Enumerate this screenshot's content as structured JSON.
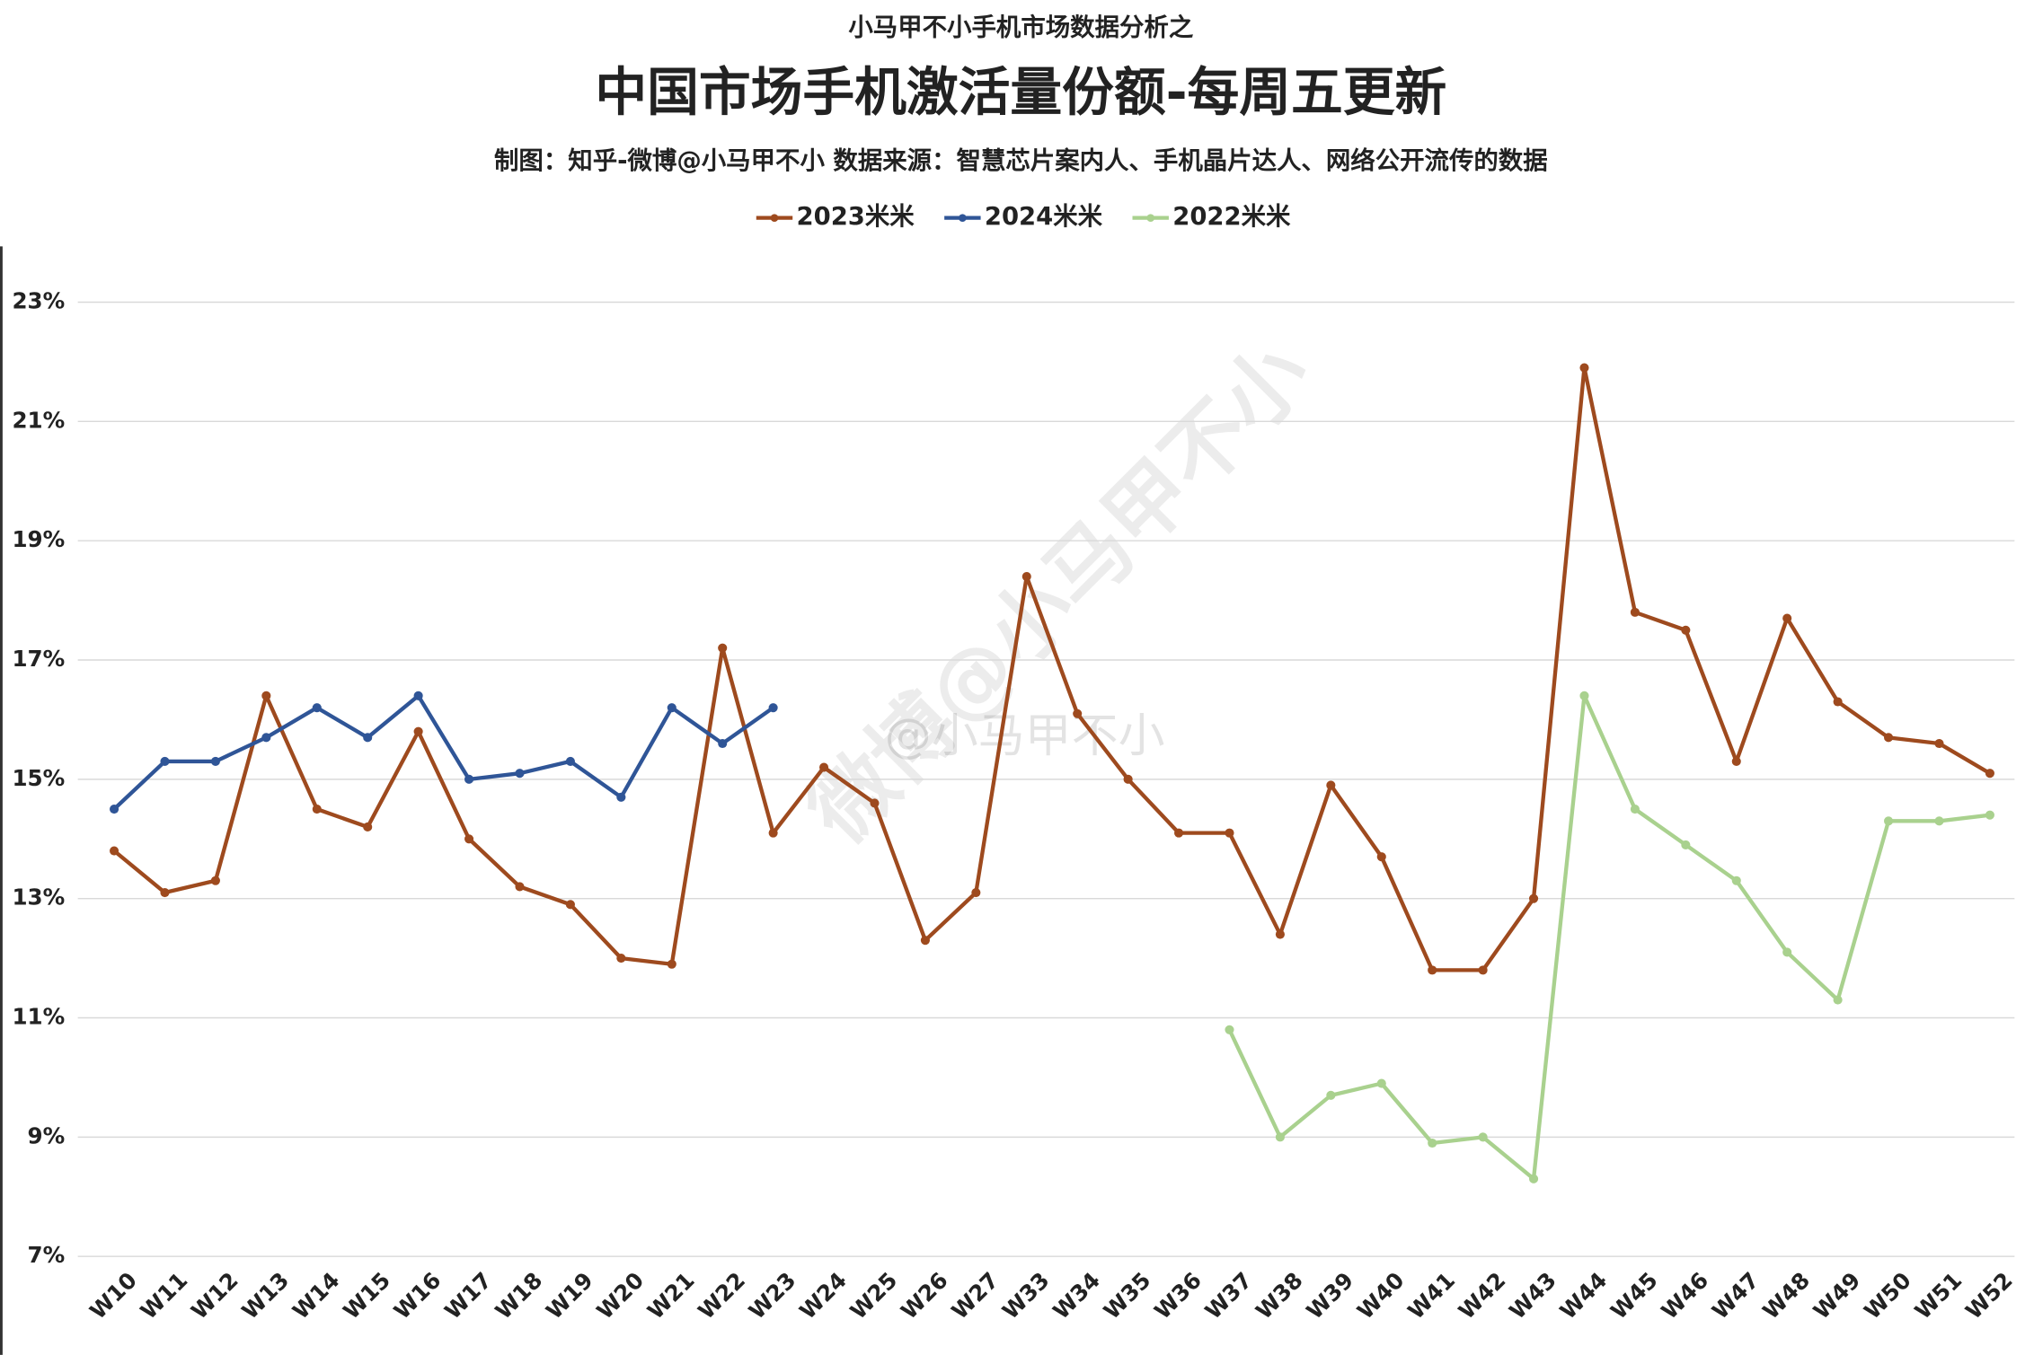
{
  "chart_data": {
    "type": "line",
    "supertitle": "小马甲不小手机市场数据分析之",
    "title": "中国市场手机激活量份额-每周五更新",
    "subtitle": "制图：知乎-微博@小马甲不小  数据来源：智慧芯片案内人、手机晶片达人、网络公开流传的数据",
    "watermark": [
      "微博@小马甲不小",
      "@小马甲不小"
    ],
    "categories": [
      "W10",
      "W11",
      "W12",
      "W13",
      "W14",
      "W15",
      "W16",
      "W17",
      "W18",
      "W19",
      "W20",
      "W21",
      "W22",
      "W23",
      "W24",
      "W25",
      "W26",
      "W27",
      "W33",
      "W34",
      "W35",
      "W36",
      "W37",
      "W38",
      "W39",
      "W40",
      "W41",
      "W42",
      "W43",
      "W44",
      "W45",
      "W46",
      "W47",
      "W48",
      "W49",
      "W50",
      "W51",
      "W52"
    ],
    "series": [
      {
        "name": "2023米米",
        "color": "#9e4a1e",
        "values": [
          13.8,
          13.1,
          13.3,
          16.4,
          14.5,
          14.2,
          15.8,
          14.0,
          13.2,
          12.9,
          12.0,
          11.9,
          17.2,
          14.1,
          15.2,
          14.6,
          12.3,
          13.1,
          18.4,
          16.1,
          15.0,
          14.1,
          14.1,
          12.4,
          14.9,
          13.7,
          11.8,
          11.8,
          13.0,
          21.9,
          17.8,
          17.5,
          15.3,
          17.7,
          16.3,
          15.7,
          15.6,
          15.1
        ]
      },
      {
        "name": "2024米米",
        "color": "#2f5597",
        "values": [
          14.5,
          15.3,
          15.3,
          15.7,
          16.2,
          15.7,
          16.4,
          15.0,
          15.1,
          15.3,
          14.7,
          16.2,
          15.6,
          16.2,
          null,
          null,
          null,
          null,
          null,
          null,
          null,
          null,
          null,
          null,
          null,
          null,
          null,
          null,
          null,
          null,
          null,
          null,
          null,
          null,
          null,
          null,
          null,
          null
        ]
      },
      {
        "name": "2022米米",
        "color": "#a9d18e",
        "values": [
          null,
          null,
          null,
          null,
          null,
          null,
          null,
          null,
          null,
          null,
          null,
          null,
          null,
          null,
          null,
          null,
          null,
          null,
          null,
          null,
          null,
          null,
          10.8,
          9.0,
          9.7,
          9.9,
          8.9,
          9.0,
          8.3,
          16.4,
          14.5,
          13.9,
          13.3,
          12.1,
          11.3,
          14.3,
          14.3,
          14.4
        ]
      }
    ],
    "ylim": [
      7,
      23
    ],
    "yticks": [
      {
        "value": 7,
        "label": "7%"
      },
      {
        "value": 9,
        "label": "9%"
      },
      {
        "value": 11,
        "label": "11%"
      },
      {
        "value": 13,
        "label": "13%"
      },
      {
        "value": 15,
        "label": "15%"
      },
      {
        "value": 17,
        "label": "17%"
      },
      {
        "value": 19,
        "label": "19%"
      },
      {
        "value": 21,
        "label": "21%"
      },
      {
        "value": 23,
        "label": "23%"
      }
    ],
    "grid": true,
    "legend": "top"
  }
}
